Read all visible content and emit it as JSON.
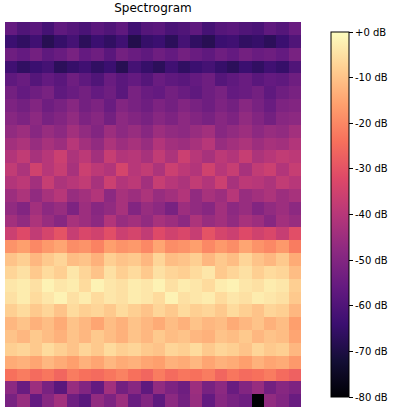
{
  "chart_data": {
    "type": "heatmap",
    "title": "Spectrogram",
    "tick_labels": false,
    "cells": [
      [
        -56,
        -60,
        -58,
        -62,
        -57,
        -59,
        -61,
        -58,
        -60,
        -57,
        -63,
        -59,
        -58,
        -61,
        -60,
        -57,
        -62,
        -59,
        -58,
        -60,
        -61,
        -57,
        -59,
        -55
      ],
      [
        -64,
        -66,
        -63,
        -68,
        -65,
        -62,
        -67,
        -64,
        -66,
        -63,
        -69,
        -65,
        -64,
        -67,
        -62,
        -66,
        -68,
        -64,
        -63,
        -66,
        -65,
        -67,
        -64,
        -60
      ],
      [
        -54,
        -56,
        -53,
        -57,
        -55,
        -52,
        -56,
        -54,
        -58,
        -53,
        -55,
        -57,
        -54,
        -56,
        -53,
        -55,
        -57,
        -54,
        -56,
        -53,
        -55,
        -54,
        -56,
        -52
      ],
      [
        -63,
        -66,
        -64,
        -62,
        -67,
        -65,
        -63,
        -66,
        -64,
        -68,
        -62,
        -65,
        -67,
        -63,
        -66,
        -64,
        -62,
        -65,
        -67,
        -64,
        -66,
        -63,
        -65,
        -60
      ],
      [
        -57,
        -55,
        -59,
        -56,
        -58,
        -54,
        -57,
        -60,
        -55,
        -58,
        -56,
        -59,
        -55,
        -57,
        -58,
        -56,
        -54,
        -59,
        -57,
        -55,
        -58,
        -56,
        -57,
        -54
      ],
      [
        -53,
        -56,
        -54,
        -52,
        -57,
        -55,
        -53,
        -56,
        -54,
        -58,
        -52,
        -55,
        -56,
        -53,
        -55,
        -57,
        -54,
        -52,
        -56,
        -55,
        -53,
        -57,
        -54,
        -52
      ],
      [
        -51,
        -53,
        -50,
        -54,
        -52,
        -49,
        -53,
        -51,
        -55,
        -50,
        -52,
        -54,
        -51,
        -53,
        -50,
        -52,
        -54,
        -51,
        -53,
        -49,
        -52,
        -55,
        -51,
        -50
      ],
      [
        -49,
        -51,
        -48,
        -52,
        -50,
        -47,
        -51,
        -49,
        -53,
        -48,
        -50,
        -52,
        -49,
        -51,
        -48,
        -50,
        -52,
        -49,
        -51,
        -47,
        -50,
        -53,
        -49,
        -48
      ],
      [
        -47,
        -45,
        -49,
        -46,
        -48,
        -44,
        -47,
        -50,
        -45,
        -48,
        -46,
        -49,
        -45,
        -47,
        -48,
        -46,
        -44,
        -49,
        -47,
        -45,
        -48,
        -46,
        -47,
        -44
      ],
      [
        -44,
        -42,
        -46,
        -43,
        -45,
        -40,
        -44,
        -47,
        -42,
        -45,
        -43,
        -46,
        -41,
        -44,
        -45,
        -43,
        -40,
        -46,
        -44,
        -42,
        -45,
        -43,
        -44,
        -41
      ],
      [
        -41,
        -38,
        -43,
        -40,
        -36,
        -42,
        -39,
        -44,
        -37,
        -41,
        -40,
        -43,
        -38,
        -42,
        -36,
        -40,
        -43,
        -39,
        -41,
        -37,
        -42,
        -40,
        -38,
        -39
      ],
      [
        -38,
        -42,
        -35,
        -40,
        -37,
        -43,
        -36,
        -39,
        -41,
        -34,
        -40,
        -38,
        -42,
        -36,
        -39,
        -41,
        -35,
        -40,
        -37,
        -43,
        -38,
        -36,
        -41,
        -37
      ],
      [
        -41,
        -39,
        -44,
        -37,
        -42,
        -40,
        -38,
        -43,
        -36,
        -41,
        -39,
        -44,
        -37,
        -40,
        -42,
        -38,
        -41,
        -36,
        -43,
        -39,
        -40,
        -42,
        -38,
        -40
      ],
      [
        -45,
        -42,
        -47,
        -43,
        -40,
        -46,
        -44,
        -41,
        -48,
        -43,
        -45,
        -42,
        -46,
        -44,
        -41,
        -47,
        -43,
        -45,
        -40,
        -46,
        -44,
        -42,
        -45,
        -43
      ],
      [
        -47,
        -50,
        -44,
        -48,
        -46,
        -51,
        -45,
        -49,
        -47,
        -43,
        -50,
        -46,
        -48,
        -52,
        -45,
        -47,
        -49,
        -44,
        -48,
        -46,
        -50,
        -47,
        -45,
        -48
      ],
      [
        -44,
        -47,
        -42,
        -46,
        -49,
        -43,
        -45,
        -48,
        -41,
        -46,
        -44,
        -47,
        -43,
        -45,
        -48,
        -42,
        -46,
        -44,
        -47,
        -43,
        -45,
        -49,
        -44,
        -46
      ],
      [
        -36,
        -32,
        -38,
        -34,
        -30,
        -37,
        -33,
        -35,
        -31,
        -36,
        -34,
        -38,
        -32,
        -35,
        -33,
        -37,
        -30,
        -34,
        -36,
        -32,
        -35,
        -33,
        -37,
        -31
      ],
      [
        -18,
        -16,
        -20,
        -17,
        -15,
        -19,
        -18,
        -21,
        -16,
        -18,
        -17,
        -20,
        -15,
        -19,
        -18,
        -16,
        -20,
        -17,
        -19,
        -15,
        -18,
        -20,
        -17,
        -22
      ],
      [
        -10,
        -8,
        -12,
        -9,
        -7,
        -11,
        -10,
        -13,
        -8,
        -10,
        -9,
        -12,
        -7,
        -11,
        -10,
        -8,
        -12,
        -9,
        -11,
        -7,
        -10,
        -12,
        -9,
        -14
      ],
      [
        -7,
        -5,
        -9,
        -6,
        -8,
        -4,
        -7,
        -10,
        -5,
        -8,
        -6,
        -9,
        -5,
        -7,
        -8,
        -6,
        -4,
        -9,
        -7,
        -5,
        -8,
        -6,
        -7,
        -11
      ],
      [
        -4,
        -3,
        -5,
        -2,
        -4,
        -3,
        -6,
        -2,
        -4,
        -5,
        -3,
        -4,
        -2,
        -5,
        -3,
        -4,
        -6,
        -3,
        -2,
        -4,
        -5,
        -3,
        -4,
        -8
      ],
      [
        -5,
        -3,
        -6,
        -4,
        -2,
        -5,
        -3,
        -6,
        -4,
        -5,
        -3,
        -4,
        -6,
        -2,
        -5,
        -4,
        -3,
        -6,
        -4,
        -5,
        -3,
        -4,
        -5,
        -9
      ],
      [
        -8,
        -6,
        -9,
        -7,
        -10,
        -6,
        -8,
        -7,
        -9,
        -6,
        -8,
        -10,
        -7,
        -9,
        -6,
        -8,
        -7,
        -9,
        -6,
        -8,
        -10,
        -7,
        -8,
        -12
      ],
      [
        -12,
        -10,
        -13,
        -11,
        -14,
        -10,
        -12,
        -15,
        -11,
        -13,
        -10,
        -12,
        -14,
        -11,
        -13,
        -10,
        -12,
        -11,
        -14,
        -12,
        -10,
        -13,
        -11,
        -16
      ],
      [
        -10,
        -12,
        -9,
        -11,
        -13,
        -10,
        -12,
        -9,
        -11,
        -13,
        -10,
        -12,
        -9,
        -11,
        -10,
        -12,
        -13,
        -10,
        -11,
        -9,
        -12,
        -10,
        -11,
        -15
      ],
      [
        -8,
        -7,
        -9,
        -6,
        -8,
        -10,
        -7,
        -9,
        -6,
        -8,
        -7,
        -9,
        -10,
        -7,
        -8,
        -6,
        -9,
        -7,
        -8,
        -10,
        -7,
        -9,
        -8,
        -12
      ],
      [
        -14,
        -13,
        -15,
        -12,
        -14,
        -16,
        -13,
        -15,
        -12,
        -14,
        -13,
        -15,
        -16,
        -13,
        -14,
        -12,
        -15,
        -13,
        -14,
        -16,
        -13,
        -15,
        -14,
        -17
      ],
      [
        -24,
        -22,
        -25,
        -23,
        -26,
        -22,
        -24,
        -25,
        -23,
        -21,
        -24,
        -26,
        -22,
        -25,
        -23,
        -24,
        -22,
        -26,
        -23,
        -25,
        -24,
        -22,
        -25,
        -27
      ],
      [
        -48,
        -55,
        -45,
        -52,
        -58,
        -46,
        -50,
        -56,
        -44,
        -53,
        -49,
        -57,
        -47,
        -51,
        -54,
        -45,
        -52,
        -48,
        -55,
        -50,
        -46,
        -53,
        -49,
        -51
      ],
      [
        -52,
        -46,
        -56,
        -49,
        -44,
        -54,
        -58,
        -47,
        -51,
        -45,
        -55,
        -50,
        -57,
        -48,
        -53,
        -46,
        -56,
        -49,
        -52,
        -54,
        -80,
        -47,
        -50,
        -55
      ]
    ],
    "colorbar": {
      "range": [
        -80,
        0
      ],
      "ticks": [
        {
          "value": 0,
          "label": "+0 dB"
        },
        {
          "value": -10,
          "label": "-10 dB"
        },
        {
          "value": -20,
          "label": "-20 dB"
        },
        {
          "value": -30,
          "label": "-30 dB"
        },
        {
          "value": -40,
          "label": "-40 dB"
        },
        {
          "value": -50,
          "label": "-50 dB"
        },
        {
          "value": -60,
          "label": "-60 dB"
        },
        {
          "value": -70,
          "label": "-70 dB"
        },
        {
          "value": -80,
          "label": "-80 dB"
        }
      ]
    }
  }
}
